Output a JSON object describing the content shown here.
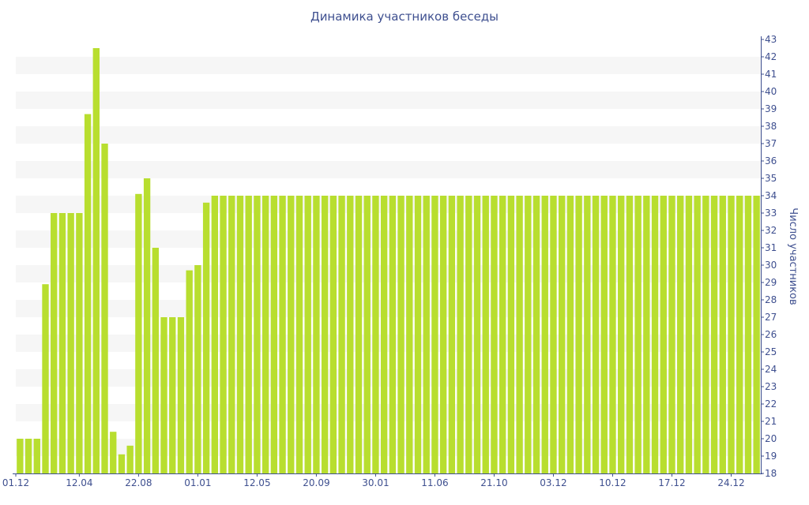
{
  "chart_data": {
    "type": "bar",
    "title": "Динамика участников беседы",
    "ylabel": "Число участников",
    "xlabel": "",
    "ylim": [
      18,
      43
    ],
    "y_axis_side": "right",
    "grid": "horizontal alternating bands",
    "legend": "none",
    "x_tick_labels": [
      "01.12",
      "12.04",
      "22.08",
      "01.01",
      "12.05",
      "20.09",
      "30.01",
      "11.06",
      "21.10",
      "03.12",
      "10.12",
      "17.12",
      "24.12"
    ],
    "x_tick_bar_index": [
      0,
      7,
      14,
      21,
      28,
      35,
      42,
      49,
      56,
      63,
      70,
      77,
      84
    ],
    "values": [
      20,
      20,
      20,
      28.9,
      33,
      33,
      33,
      33,
      38.7,
      42.5,
      37,
      20.4,
      19.1,
      19.6,
      34.1,
      35,
      31,
      27,
      27,
      27,
      29.7,
      30,
      33.6,
      34,
      34,
      34,
      34,
      34,
      34,
      34,
      34,
      34,
      34,
      34,
      34,
      34,
      34,
      34,
      34,
      34,
      34,
      34,
      34,
      34,
      34,
      34,
      34,
      34,
      34,
      34,
      34,
      34,
      34,
      34,
      34,
      34,
      34,
      34,
      34,
      34,
      34,
      34,
      34,
      34,
      34,
      34,
      34,
      34,
      34,
      34,
      34,
      34,
      34,
      34,
      34,
      34,
      34,
      34,
      34,
      34,
      34,
      34,
      34,
      34,
      34,
      34,
      34,
      34
    ]
  },
  "colors": {
    "bar": "#b8de2f",
    "text": "#3e4f8f",
    "band": "#f6f6f6",
    "axis": "#3e4f8f"
  }
}
